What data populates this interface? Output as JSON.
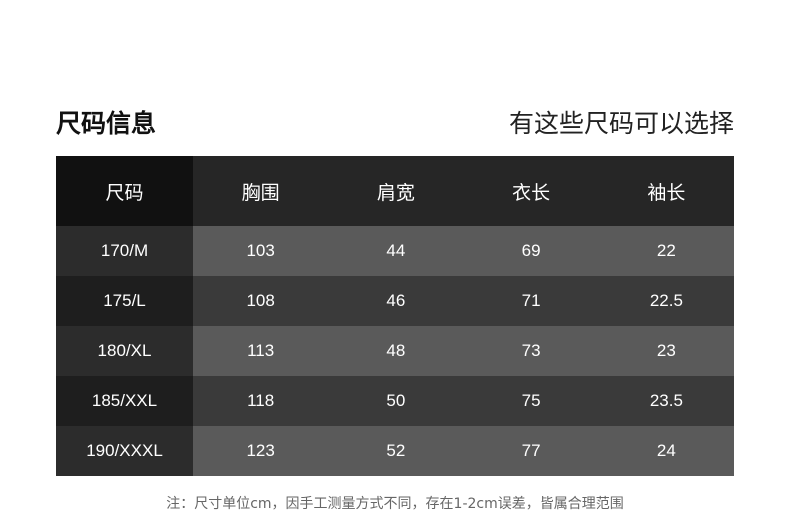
{
  "title": "尺码信息",
  "subtitle": "有这些尺码可以选择",
  "table": {
    "headers": [
      "尺码",
      "胸围",
      "肩宽",
      "衣长",
      "袖长"
    ],
    "rows": [
      [
        "170/M",
        "103",
        "44",
        "69",
        "22"
      ],
      [
        "175/L",
        "108",
        "46",
        "71",
        "22.5"
      ],
      [
        "180/XL",
        "113",
        "48",
        "73",
        "23"
      ],
      [
        "185/XXL",
        "118",
        "50",
        "75",
        "23.5"
      ],
      [
        "190/XXXL",
        "123",
        "52",
        "77",
        "24"
      ]
    ]
  },
  "note": "注：尺寸单位cm，因手工测量方式不同，存在1-2cm误差，皆属合理范围"
}
